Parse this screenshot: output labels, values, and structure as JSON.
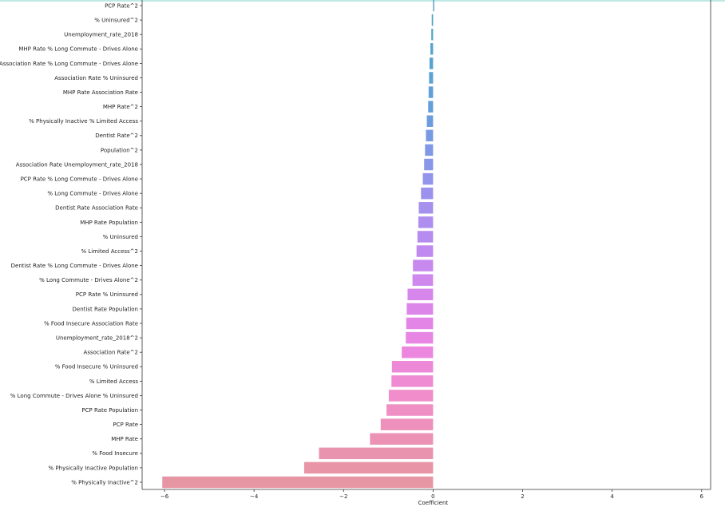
{
  "chart_data": {
    "type": "bar",
    "orientation": "horizontal",
    "title": "",
    "xlabel": "Coefficient",
    "ylabel": "",
    "xlim": [
      -6.5,
      6.2
    ],
    "xticks": [
      -6,
      -4,
      -2,
      0,
      2,
      4,
      6
    ],
    "xtick_labels": [
      "−6",
      "−4",
      "−2",
      "0",
      "2",
      "4",
      "6"
    ],
    "grid": false,
    "legend": "none",
    "categories": [
      "PCP Rate^2",
      "% Uninsured^2",
      "Unemployment_rate_2018",
      "MHP Rate % Long Commute - Drives Alone",
      "Association Rate % Long Commute - Drives Alone",
      "Association Rate % Uninsured",
      "MHP Rate Association Rate",
      "MHP Rate^2",
      "% Physically Inactive % Limited Access",
      "Dentist Rate^2",
      "Population^2",
      "Association Rate Unemployment_rate_2018",
      "PCP Rate % Long Commute - Drives Alone",
      "% Long Commute - Drives Alone",
      "Dentist Rate Association Rate",
      "MHP Rate Population",
      "% Uninsured",
      "% Limited Access^2",
      "Dentist Rate % Long Commute - Drives Alone",
      "% Long Commute - Drives Alone^2",
      "PCP Rate % Uninsured",
      "Dentist Rate Population",
      "% Food Insecure Association Rate",
      "Unemployment_rate_2018^2",
      "Association Rate^2",
      "% Food Insecure % Uninsured",
      "% Limited Access",
      "% Long Commute - Drives Alone % Uninsured",
      "PCP Rate Population",
      "PCP Rate",
      "MHP Rate",
      "% Food Insecure",
      "% Physically Inactive Population",
      "% Physically Inactive^2"
    ],
    "values": [
      0.0,
      -0.03,
      -0.04,
      -0.06,
      -0.08,
      -0.09,
      -0.1,
      -0.11,
      -0.14,
      -0.16,
      -0.18,
      -0.2,
      -0.23,
      -0.27,
      -0.32,
      -0.33,
      -0.35,
      -0.37,
      -0.45,
      -0.46,
      -0.57,
      -0.59,
      -0.6,
      -0.61,
      -0.7,
      -0.92,
      -0.93,
      -0.99,
      -1.04,
      -1.17,
      -1.41,
      -2.55,
      -2.88,
      -6.05
    ],
    "colors": [
      "#4f9fb9",
      "#4fa2c0",
      "#53a4c6",
      "#56a4cc",
      "#58a4d1",
      "#5ca3d4",
      "#61a1d8",
      "#659fdb",
      "#6d9cdf",
      "#779ae2",
      "#8098e5",
      "#8a96e8",
      "#9394eb",
      "#9c92ed",
      "#a590ee",
      "#ae8eef",
      "#b78cf0",
      "#c08af0",
      "#c889ef",
      "#cf88ee",
      "#d787ec",
      "#dd86ea",
      "#e385e7",
      "#e886e3",
      "#eb87de",
      "#ee89d8",
      "#ef8bd2",
      "#f08dca",
      "#ef8fc3",
      "#ee90bc",
      "#ec92b5",
      "#ea93ae",
      "#e895a8",
      "#e696a3"
    ]
  }
}
